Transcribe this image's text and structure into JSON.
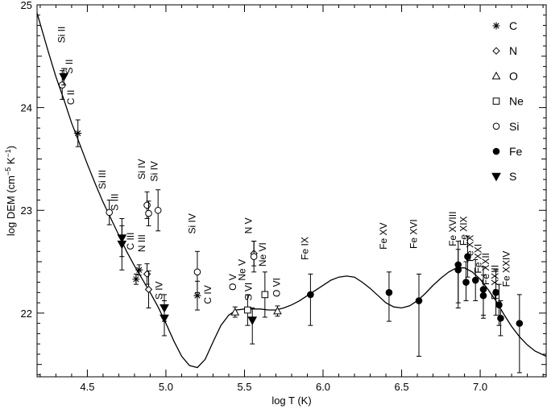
{
  "chart_data": {
    "type": "scatter",
    "xlabel": "log T (K)",
    "ylabel_main": "log DEM (cm",
    "ylabel_exp1": "−5",
    "ylabel_mid": " K",
    "ylabel_exp2": "−1",
    "ylabel_close": ")",
    "xlim": [
      4.18,
      7.42
    ],
    "ylim": [
      21.38,
      25.0
    ],
    "xticks": [
      4.5,
      5.0,
      5.5,
      6.0,
      6.5,
      7.0
    ],
    "xtick_labels": [
      "4.5",
      "5.0",
      "5.5",
      "6.0",
      "6.5",
      "7.0"
    ],
    "yticks": [
      22,
      23,
      24,
      25
    ],
    "ytick_labels": [
      "22",
      "23",
      "24",
      "25"
    ],
    "legend": [
      {
        "symbol": "asterisk",
        "label": "C"
      },
      {
        "symbol": "diamond",
        "label": "N"
      },
      {
        "symbol": "triangle",
        "label": "O"
      },
      {
        "symbol": "square",
        "label": "Ne"
      },
      {
        "symbol": "circle",
        "label": "Si"
      },
      {
        "symbol": "filled-circle",
        "label": "Fe"
      },
      {
        "symbol": "filled-triangle-down",
        "label": "S"
      }
    ],
    "curve": [
      [
        4.18,
        24.92
      ],
      [
        4.25,
        24.55
      ],
      [
        4.3,
        24.3
      ],
      [
        4.35,
        24.08
      ],
      [
        4.4,
        23.85
      ],
      [
        4.45,
        23.65
      ],
      [
        4.5,
        23.45
      ],
      [
        4.55,
        23.26
      ],
      [
        4.6,
        23.08
      ],
      [
        4.65,
        22.92
      ],
      [
        4.7,
        22.76
      ],
      [
        4.75,
        22.6
      ],
      [
        4.8,
        22.46
      ],
      [
        4.85,
        22.33
      ],
      [
        4.9,
        22.2
      ],
      [
        4.95,
        22.06
      ],
      [
        5.0,
        21.9
      ],
      [
        5.05,
        21.73
      ],
      [
        5.1,
        21.58
      ],
      [
        5.15,
        21.49
      ],
      [
        5.2,
        21.47
      ],
      [
        5.25,
        21.55
      ],
      [
        5.3,
        21.72
      ],
      [
        5.35,
        21.88
      ],
      [
        5.4,
        21.98
      ],
      [
        5.45,
        22.03
      ],
      [
        5.5,
        22.04
      ],
      [
        5.55,
        22.04
      ],
      [
        5.6,
        22.04
      ],
      [
        5.65,
        22.03
      ],
      [
        5.7,
        22.03
      ],
      [
        5.75,
        22.05
      ],
      [
        5.8,
        22.08
      ],
      [
        5.85,
        22.12
      ],
      [
        5.9,
        22.17
      ],
      [
        5.95,
        22.22
      ],
      [
        6.0,
        22.27
      ],
      [
        6.05,
        22.32
      ],
      [
        6.1,
        22.35
      ],
      [
        6.15,
        22.36
      ],
      [
        6.2,
        22.35
      ],
      [
        6.25,
        22.3
      ],
      [
        6.3,
        22.24
      ],
      [
        6.35,
        22.17
      ],
      [
        6.4,
        22.1
      ],
      [
        6.45,
        22.06
      ],
      [
        6.5,
        22.05
      ],
      [
        6.55,
        22.07
      ],
      [
        6.6,
        22.12
      ],
      [
        6.65,
        22.19
      ],
      [
        6.7,
        22.27
      ],
      [
        6.75,
        22.34
      ],
      [
        6.8,
        22.4
      ],
      [
        6.85,
        22.44
      ],
      [
        6.9,
        22.44
      ],
      [
        6.95,
        22.4
      ],
      [
        7.0,
        22.33
      ],
      [
        7.05,
        22.23
      ],
      [
        7.1,
        22.12
      ],
      [
        7.15,
        21.99
      ],
      [
        7.2,
        21.87
      ],
      [
        7.25,
        21.77
      ],
      [
        7.3,
        21.69
      ],
      [
        7.35,
        21.63
      ],
      [
        7.42,
        21.58
      ]
    ],
    "points": [
      {
        "ion": "C",
        "label": "C II",
        "x": 4.44,
        "y": 23.75,
        "lo": 23.62,
        "hi": 23.88,
        "sym": "asterisk",
        "lx": 4.4,
        "ly": 24.1
      },
      {
        "ion": "C",
        "label": "C III",
        "x": 4.81,
        "y": 22.33,
        "lo": 22.28,
        "hi": 22.38,
        "sym": "asterisk",
        "lx": 4.78,
        "ly": 22.7
      },
      {
        "ion": "C",
        "label": "C III",
        "x": 4.83,
        "y": 22.42,
        "lo": 22.37,
        "hi": 22.47,
        "sym": "asterisk",
        "lx": null,
        "ly": null
      },
      {
        "ion": "C",
        "label": "C IV",
        "x": 5.2,
        "y": 22.17,
        "lo": 22.03,
        "hi": 22.31,
        "sym": "asterisk",
        "lx": 5.27,
        "ly": 22.18
      },
      {
        "ion": "N",
        "label": "N III",
        "x": 4.88,
        "y": 22.38,
        "lo": 22.28,
        "hi": 22.48,
        "sym": "diamond",
        "lx": 4.85,
        "ly": 22.68
      },
      {
        "ion": "N",
        "label": "",
        "x": 4.89,
        "y": 22.23,
        "lo": 22.05,
        "hi": 22.41,
        "sym": "diamond",
        "lx": null,
        "ly": null
      },
      {
        "ion": "N",
        "label": "N V",
        "x": 5.56,
        "y": 22.58,
        "lo": 22.46,
        "hi": 22.7,
        "sym": "diamond",
        "lx": 5.53,
        "ly": 22.85
      },
      {
        "ion": "O",
        "label": "O V",
        "x": 5.44,
        "y": 22.01,
        "lo": 21.96,
        "hi": 22.06,
        "sym": "triangle",
        "lx": 5.43,
        "ly": 22.3
      },
      {
        "ion": "O",
        "label": "O VI",
        "x": 5.71,
        "y": 22.02,
        "lo": 21.97,
        "hi": 22.07,
        "sym": "triangle",
        "lx": 5.71,
        "ly": 22.25
      },
      {
        "ion": "Ne",
        "label": "Ne V",
        "x": 5.52,
        "y": 22.03,
        "lo": 21.88,
        "hi": 22.18,
        "sym": "square",
        "lx": 5.49,
        "ly": 22.42
      },
      {
        "ion": "Ne",
        "label": "Ne VI",
        "x": 5.63,
        "y": 22.18,
        "lo": 21.96,
        "hi": 22.4,
        "sym": "square",
        "lx": 5.62,
        "ly": 22.57
      },
      {
        "ion": "Si",
        "label": "Si II",
        "x": 4.34,
        "y": 24.22,
        "lo": 24.08,
        "hi": 24.36,
        "sym": "circle",
        "lx": 4.34,
        "ly": 24.71
      },
      {
        "ion": "Si",
        "label": "Si III",
        "x": 4.64,
        "y": 22.98,
        "lo": 22.86,
        "hi": 23.1,
        "sym": "circle",
        "lx": 4.6,
        "ly": 23.3
      },
      {
        "ion": "Si",
        "label": "Si IV",
        "x": 4.88,
        "y": 23.05,
        "lo": 22.92,
        "hi": 23.18,
        "sym": "circle",
        "lx": 4.85,
        "ly": 23.4
      },
      {
        "ion": "Si",
        "label": "",
        "x": 4.89,
        "y": 22.97,
        "lo": 22.85,
        "hi": 23.09,
        "sym": "circle",
        "lx": null,
        "ly": null
      },
      {
        "ion": "Si",
        "label": "Si IV",
        "x": 4.95,
        "y": 23.0,
        "lo": 22.8,
        "hi": 23.2,
        "sym": "circle",
        "lx": 4.93,
        "ly": 23.38
      },
      {
        "ion": "Si",
        "label": "Si IV",
        "x": 5.2,
        "y": 22.4,
        "lo": 22.2,
        "hi": 22.6,
        "sym": "circle",
        "lx": 5.17,
        "ly": 22.87
      },
      {
        "ion": "Si",
        "label": "",
        "x": 5.56,
        "y": 22.55,
        "lo": 22.4,
        "hi": 22.7,
        "sym": "circle",
        "lx": null,
        "ly": null
      },
      {
        "ion": "Fe",
        "label": "Fe IX",
        "x": 5.92,
        "y": 22.18,
        "lo": 21.88,
        "hi": 22.38,
        "sym": "filled-circle",
        "lx": 5.89,
        "ly": 22.63
      },
      {
        "ion": "Fe",
        "label": "Fe XV",
        "x": 6.42,
        "y": 22.2,
        "lo": 21.92,
        "hi": 22.4,
        "sym": "filled-circle",
        "lx": 6.39,
        "ly": 22.75
      },
      {
        "ion": "Fe",
        "label": "Fe XVI",
        "x": 6.61,
        "y": 22.12,
        "lo": 21.58,
        "hi": 22.38,
        "sym": "filled-circle",
        "lx": 6.58,
        "ly": 22.77
      },
      {
        "ion": "Fe",
        "label": "Fe XVIII",
        "x": 6.86,
        "y": 22.47,
        "lo": 22.05,
        "hi": 22.7,
        "sym": "filled-circle",
        "lx": 6.83,
        "ly": 22.82
      },
      {
        "ion": "Fe",
        "label": "",
        "x": 6.86,
        "y": 22.42,
        "lo": 22.1,
        "hi": 22.62,
        "sym": "filled-circle",
        "lx": null,
        "ly": null
      },
      {
        "ion": "Fe",
        "label": "Fe XIX",
        "x": 6.91,
        "y": 22.3,
        "lo": 22.12,
        "hi": 22.5,
        "sym": "filled-circle",
        "lx": 6.9,
        "ly": 22.8
      },
      {
        "ion": "Fe",
        "label": "Fe XX",
        "x": 6.92,
        "y": 22.55,
        "lo": 22.35,
        "hi": 22.75,
        "sym": "filled-circle",
        "lx": 6.94,
        "ly": 22.63
      },
      {
        "ion": "Fe",
        "label": "Fe XXI",
        "x": 6.97,
        "y": 22.32,
        "lo": 22.12,
        "hi": 22.52,
        "sym": "filled-circle",
        "lx": 6.99,
        "ly": 22.53
      },
      {
        "ion": "Fe",
        "label": "Fe XXII",
        "x": 7.02,
        "y": 22.23,
        "lo": 21.95,
        "hi": 22.45,
        "sym": "filled-circle",
        "lx": 7.04,
        "ly": 22.43
      },
      {
        "ion": "Fe",
        "label": "",
        "x": 7.02,
        "y": 22.17,
        "lo": 21.98,
        "hi": 22.37,
        "sym": "filled-circle",
        "lx": null,
        "ly": null
      },
      {
        "ion": "Fe",
        "label": "Fe XXIII",
        "x": 7.1,
        "y": 22.2,
        "lo": 21.98,
        "hi": 22.42,
        "sym": "filled-circle",
        "lx": 7.1,
        "ly": 22.3
      },
      {
        "ion": "Fe",
        "label": "Fe XXIV",
        "x": 7.12,
        "y": 22.08,
        "lo": 21.88,
        "hi": 22.28,
        "sym": "filled-circle",
        "lx": 7.17,
        "ly": 22.43
      },
      {
        "ion": "Fe",
        "label": "",
        "x": 7.13,
        "y": 21.95,
        "lo": 21.78,
        "hi": 22.12,
        "sym": "filled-circle",
        "lx": null,
        "ly": null
      },
      {
        "ion": "Fe",
        "label": "",
        "x": 7.25,
        "y": 21.9,
        "lo": 21.42,
        "hi": 22.18,
        "sym": "filled-circle",
        "lx": null,
        "ly": null
      },
      {
        "ion": "S",
        "label": "S II",
        "x": 4.35,
        "y": 24.3,
        "lo": 24.22,
        "hi": 24.38,
        "sym": "filled-triangle-down",
        "lx": 4.39,
        "ly": 24.4
      },
      {
        "ion": "S",
        "label": "S III",
        "x": 4.72,
        "y": 22.73,
        "lo": 22.55,
        "hi": 22.92,
        "sym": "filled-triangle-down",
        "lx": 4.68,
        "ly": 23.08
      },
      {
        "ion": "S",
        "label": "",
        "x": 4.72,
        "y": 22.67,
        "lo": 22.42,
        "hi": 22.85,
        "sym": "filled-triangle-down",
        "lx": null,
        "ly": null
      },
      {
        "ion": "S",
        "label": "S IV",
        "x": 4.99,
        "y": 21.95,
        "lo": 21.78,
        "hi": 22.12,
        "sym": "filled-triangle-down",
        "lx": 4.96,
        "ly": 22.22
      },
      {
        "ion": "S",
        "label": "",
        "x": 4.99,
        "y": 22.05,
        "lo": 21.92,
        "hi": 22.18,
        "sym": "filled-triangle-down",
        "lx": null,
        "ly": null
      },
      {
        "ion": "S",
        "label": "S VI",
        "x": 5.55,
        "y": 21.93,
        "lo": 21.7,
        "hi": 22.05,
        "sym": "filled-triangle-down",
        "lx": 5.53,
        "ly": 22.21
      }
    ]
  }
}
